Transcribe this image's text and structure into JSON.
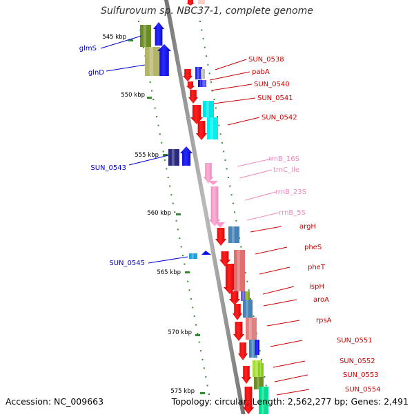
{
  "title": "Sulfurovum sp. NBC37-1, complete genome",
  "footer": {
    "accession": "Accession: NC_009663",
    "stats": "Topology: circular; Length: 2,562,277 bp; Genes: 2,491"
  },
  "scale": {
    "unit": "kbp",
    "ticks": [
      "545 kbp",
      "550 kbp",
      "555 kbp",
      "560 kbp",
      "565 kbp",
      "570 kbp",
      "575 kbp"
    ]
  },
  "colors": {
    "backbone": "#8c8c8c",
    "scale_dots": "#2e8b2e",
    "reverse_label": "#0000cc",
    "forward_label": "#cc0000",
    "rna_label": "#ee88bb"
  },
  "reverse_genes": [
    {
      "name": "glmS",
      "color": "#6b8e23",
      "arrow": "#1010ee"
    },
    {
      "name": "glnD",
      "color": "#b5b56a",
      "arrow": "#1010ee"
    },
    {
      "name": "SUN_0543",
      "color": "#2a2a80",
      "arrow": "#1010ee"
    },
    {
      "name": "SUN_0545",
      "color": "#1ea0d8",
      "arrow": "#1010ee"
    }
  ],
  "forward_genes": [
    {
      "name": "SUN_0538",
      "type": "gene"
    },
    {
      "name": "pabA",
      "type": "gene"
    },
    {
      "name": "SUN_0540",
      "type": "gene"
    },
    {
      "name": "SUN_0541",
      "type": "gene"
    },
    {
      "name": "SUN_0542",
      "type": "gene"
    },
    {
      "name": "rrnB_16S",
      "type": "rna"
    },
    {
      "name": "trnC_Ile",
      "type": "rna"
    },
    {
      "name": "rrnB_23S",
      "type": "rna"
    },
    {
      "name": "rrnB_5S",
      "type": "rna"
    },
    {
      "name": "argH",
      "type": "gene"
    },
    {
      "name": "pheS",
      "type": "gene"
    },
    {
      "name": "pheT",
      "type": "gene"
    },
    {
      "name": "ispH",
      "type": "gene"
    },
    {
      "name": "aroA",
      "type": "gene"
    },
    {
      "name": "rpsA",
      "type": "gene"
    },
    {
      "name": "SUN_0551",
      "type": "gene"
    },
    {
      "name": "SUN_0552",
      "type": "gene"
    },
    {
      "name": "SUN_0553",
      "type": "gene"
    },
    {
      "name": "SUN_0554",
      "type": "gene"
    }
  ]
}
